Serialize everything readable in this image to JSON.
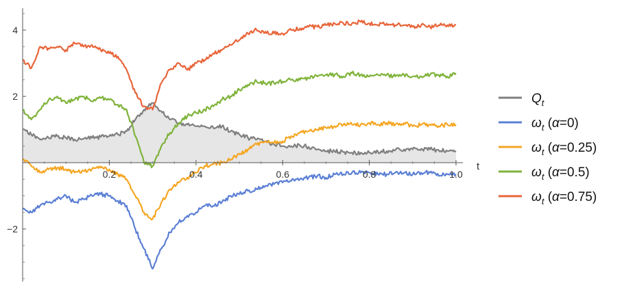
{
  "chart_data": {
    "type": "line",
    "title": "",
    "xlabel": "t",
    "ylabel": "",
    "xlim": [
      0,
      1.0
    ],
    "ylim": [
      -3.6,
      4.7
    ],
    "x_ticks": [
      0.2,
      0.4,
      0.6,
      0.8,
      1.0
    ],
    "x_tick_labels": [
      "0.2",
      "0.4",
      "0.6",
      "0.8",
      "1.0"
    ],
    "y_ticks": [
      -2,
      2,
      4
    ],
    "y_tick_labels": [
      "−2",
      "2",
      "4"
    ],
    "grid": false,
    "legend_position": "right",
    "x": [
      0.0,
      0.02,
      0.04,
      0.06,
      0.08,
      0.1,
      0.12,
      0.14,
      0.16,
      0.18,
      0.2,
      0.22,
      0.24,
      0.26,
      0.28,
      0.3,
      0.32,
      0.34,
      0.36,
      0.38,
      0.4,
      0.42,
      0.44,
      0.46,
      0.48,
      0.5,
      0.52,
      0.54,
      0.56,
      0.58,
      0.6,
      0.62,
      0.64,
      0.66,
      0.68,
      0.7,
      0.72,
      0.74,
      0.76,
      0.78,
      0.8,
      0.82,
      0.84,
      0.86,
      0.88,
      0.9,
      0.92,
      0.94,
      0.96,
      0.98,
      1.0
    ],
    "series": [
      {
        "name": "Q",
        "name_sub": "t",
        "color": "#7f7f7f",
        "fill_to_axis": true,
        "fill_color": "#e6e6e6",
        "values": [
          1.0,
          0.85,
          0.7,
          0.75,
          0.8,
          0.75,
          0.7,
          0.72,
          0.75,
          0.78,
          0.8,
          0.85,
          0.95,
          1.3,
          1.6,
          1.8,
          1.55,
          1.3,
          1.2,
          1.15,
          1.1,
          1.1,
          1.05,
          1.1,
          0.95,
          0.85,
          0.75,
          0.7,
          0.65,
          0.55,
          0.5,
          0.5,
          0.52,
          0.48,
          0.4,
          0.35,
          0.35,
          0.32,
          0.3,
          0.3,
          0.3,
          0.33,
          0.35,
          0.38,
          0.4,
          0.4,
          0.42,
          0.4,
          0.38,
          0.35,
          0.35
        ]
      },
      {
        "name": "ω",
        "name_sub": "t",
        "name_suffix": "(α=0)",
        "color": "#5b7fd4",
        "values": [
          -1.4,
          -1.5,
          -1.3,
          -1.2,
          -1.1,
          -1.0,
          -1.2,
          -1.1,
          -1.0,
          -0.95,
          -1.0,
          -1.15,
          -1.3,
          -2.0,
          -2.6,
          -3.2,
          -2.6,
          -2.1,
          -1.8,
          -1.6,
          -1.5,
          -1.3,
          -1.3,
          -1.2,
          -1.0,
          -0.95,
          -0.85,
          -0.8,
          -0.7,
          -0.65,
          -0.6,
          -0.55,
          -0.5,
          -0.45,
          -0.4,
          -0.45,
          -0.35,
          -0.35,
          -0.3,
          -0.3,
          -0.3,
          -0.35,
          -0.35,
          -0.3,
          -0.3,
          -0.35,
          -0.3,
          -0.3,
          -0.4,
          -0.35,
          -0.35
        ]
      },
      {
        "name": "ω",
        "name_sub": "t",
        "name_suffix": "(α=0.25)",
        "color": "#f5a623",
        "values": [
          0.1,
          -0.1,
          -0.3,
          -0.2,
          -0.15,
          -0.2,
          -0.3,
          -0.25,
          -0.2,
          -0.15,
          -0.2,
          -0.35,
          -0.5,
          -1.0,
          -1.5,
          -1.7,
          -1.2,
          -0.8,
          -0.6,
          -0.45,
          -0.3,
          -0.1,
          -0.05,
          0.0,
          0.1,
          0.25,
          0.4,
          0.55,
          0.65,
          0.6,
          0.65,
          0.8,
          0.9,
          0.95,
          1.0,
          1.05,
          1.1,
          1.15,
          1.15,
          1.15,
          1.2,
          1.15,
          1.2,
          1.15,
          1.2,
          1.1,
          1.15,
          1.15,
          1.1,
          1.15,
          1.15
        ]
      },
      {
        "name": "ω",
        "name_sub": "t",
        "name_suffix": "(α=0.5)",
        "color": "#7fb33a",
        "values": [
          1.6,
          1.3,
          1.6,
          1.9,
          2.0,
          1.8,
          1.9,
          2.0,
          1.85,
          1.95,
          1.9,
          1.75,
          1.6,
          0.8,
          0.0,
          -0.1,
          0.5,
          0.9,
          1.2,
          1.4,
          1.5,
          1.6,
          1.7,
          1.9,
          2.0,
          2.2,
          2.35,
          2.45,
          2.4,
          2.4,
          2.45,
          2.5,
          2.5,
          2.55,
          2.6,
          2.65,
          2.65,
          2.6,
          2.7,
          2.65,
          2.6,
          2.65,
          2.65,
          2.6,
          2.65,
          2.6,
          2.6,
          2.65,
          2.65,
          2.6,
          2.7
        ]
      },
      {
        "name": "ω",
        "name_sub": "t",
        "name_suffix": "(α=0.75)",
        "color": "#e8653a",
        "values": [
          3.1,
          2.85,
          3.5,
          3.45,
          3.5,
          3.4,
          3.6,
          3.5,
          3.55,
          3.4,
          3.3,
          3.2,
          2.8,
          2.1,
          1.7,
          1.6,
          2.4,
          2.8,
          3.0,
          2.8,
          3.0,
          3.1,
          3.3,
          3.4,
          3.55,
          3.7,
          3.9,
          4.0,
          3.95,
          3.9,
          3.9,
          4.0,
          4.05,
          4.1,
          4.1,
          4.15,
          4.2,
          4.2,
          4.2,
          4.25,
          4.2,
          4.15,
          4.2,
          4.15,
          4.15,
          4.1,
          4.15,
          4.1,
          4.15,
          4.15,
          4.15
        ]
      }
    ]
  }
}
